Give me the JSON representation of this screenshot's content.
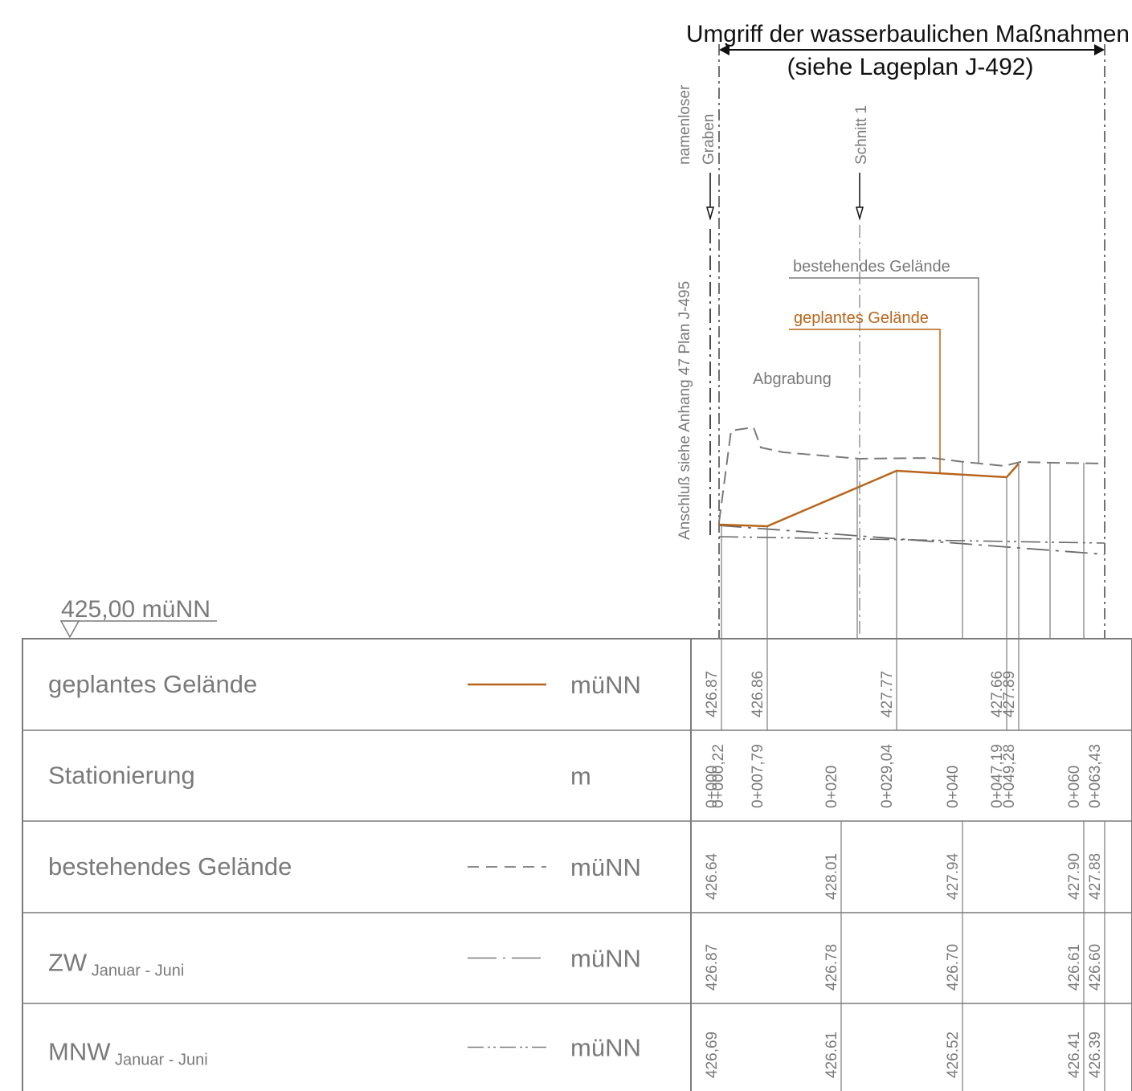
{
  "header": {
    "title_line1": "Umgriff der wasserbaulichen Maßnahmen",
    "title_line2": "(siehe Lageplan J-492)"
  },
  "annotations": {
    "graben_line1": "namenloser",
    "graben_line2": "Graben",
    "schnitt": "Schnitt 1",
    "anschluss": "Anschluß siehe Anhang 47 Plan J-495",
    "bestehendes_label": "bestehendes Gelände",
    "geplantes_label": "geplantes Gelände",
    "abgrabung": "Abgrabung",
    "reference_level": "425,00 müNN"
  },
  "colors": {
    "geplant": "#b8651a",
    "grey": "#7a7a7a",
    "dark": "#111111"
  },
  "table": {
    "rows": [
      {
        "label": "geplantes Gelände",
        "sub": "",
        "unit": "müNN",
        "legend": "solid-orange",
        "values": [
          {
            "ref": "s0000",
            "v": "426.87"
          },
          {
            "ref": "s0779",
            "v": "426.86"
          },
          {
            "ref": "s2904",
            "v": "427.77"
          },
          {
            "ref": "s4719",
            "v": "427.66"
          },
          {
            "ref": "s4928",
            "v": "427.89"
          }
        ]
      },
      {
        "label": "Stationierung",
        "sub": "",
        "unit": "m",
        "legend": "none",
        "values": [
          {
            "ref": "s0000",
            "v": "0+000"
          },
          {
            "ref": "s0022",
            "v": "0+000,22"
          },
          {
            "ref": "s0779",
            "v": "0+007,79"
          },
          {
            "ref": "s2000",
            "v": "0+020"
          },
          {
            "ref": "s2904",
            "v": "0+029,04"
          },
          {
            "ref": "s4000",
            "v": "0+040"
          },
          {
            "ref": "s4719",
            "v": "0+047,19"
          },
          {
            "ref": "s4928",
            "v": "0+049,28"
          },
          {
            "ref": "s6000",
            "v": "0+060"
          },
          {
            "ref": "s6343",
            "v": "0+063,43"
          }
        ]
      },
      {
        "label": "bestehendes Gelände",
        "sub": "",
        "unit": "müNN",
        "legend": "dashed",
        "values": [
          {
            "ref": "s0000",
            "v": "426.64"
          },
          {
            "ref": "s2000",
            "v": "428.01"
          },
          {
            "ref": "s4000",
            "v": "427.94"
          },
          {
            "ref": "s6000",
            "v": "427.90"
          },
          {
            "ref": "s6343",
            "v": "427.88"
          }
        ]
      },
      {
        "label": "ZW",
        "sub": "Januar - Juni",
        "unit": "müNN",
        "legend": "dash-dot",
        "values": [
          {
            "ref": "s0000",
            "v": "426.87"
          },
          {
            "ref": "s2000",
            "v": "426.78"
          },
          {
            "ref": "s4000",
            "v": "426.70"
          },
          {
            "ref": "s6000",
            "v": "426.61"
          },
          {
            "ref": "s6343",
            "v": "426.60"
          }
        ]
      },
      {
        "label": "MNW",
        "sub": "Januar - Juni",
        "unit": "müNN",
        "legend": "dash-dot-dot",
        "values": [
          {
            "ref": "s0000",
            "v": "426,69"
          },
          {
            "ref": "s2000",
            "v": "426.61"
          },
          {
            "ref": "s4000",
            "v": "426.52"
          },
          {
            "ref": "s6000",
            "v": "426.41"
          },
          {
            "ref": "s6343",
            "v": "426.39"
          }
        ]
      }
    ]
  }
}
